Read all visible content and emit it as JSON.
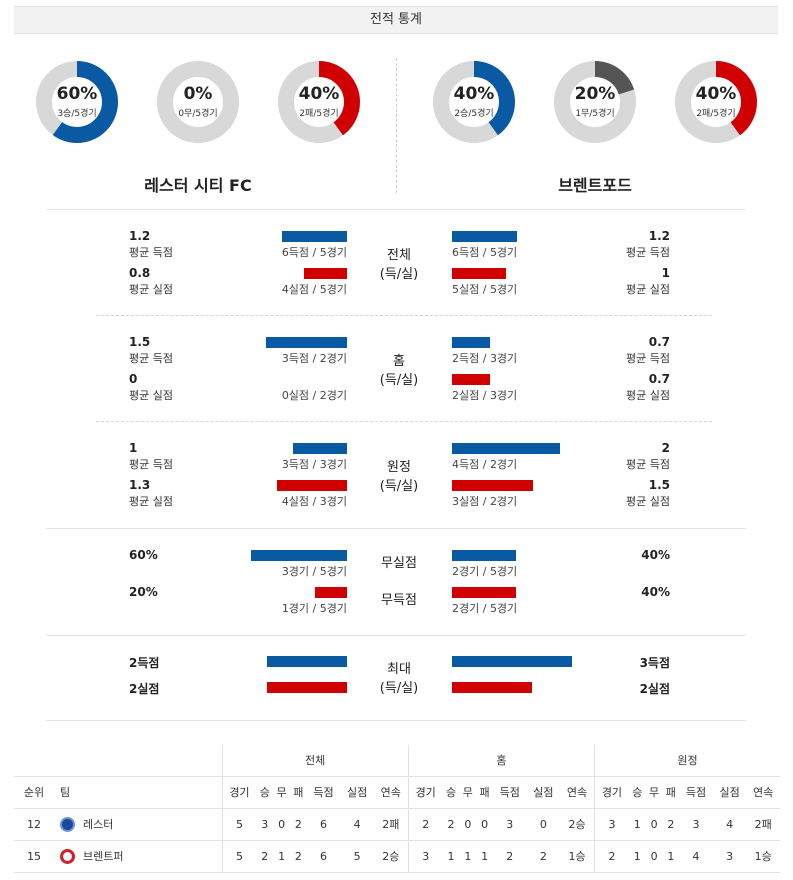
{
  "header": {
    "title": "전적 통계"
  },
  "donuts": {
    "home": [
      {
        "pct": "60%",
        "sub": "3승/5경기",
        "value": 0.6,
        "color": "#0a5aa3"
      },
      {
        "pct": "0%",
        "sub": "0무/5경기",
        "value": 0.0,
        "color": "#555555"
      },
      {
        "pct": "40%",
        "sub": "2패/5경기",
        "value": 0.4,
        "color": "#d00000"
      }
    ],
    "away": [
      {
        "pct": "40%",
        "sub": "2승/5경기",
        "value": 0.4,
        "color": "#0a5aa3"
      },
      {
        "pct": "20%",
        "sub": "1무/5경기",
        "value": 0.2,
        "color": "#555555"
      },
      {
        "pct": "40%",
        "sub": "2패/5경기",
        "value": 0.4,
        "color": "#d00000"
      }
    ]
  },
  "teams": {
    "home": "레스터 시티 FC",
    "away": "브렌트포드"
  },
  "colors": {
    "blue": "#0a5aa3",
    "red": "#d00000",
    "track": "#d8d8d8"
  },
  "sections": {
    "overall": {
      "center": [
        "전체",
        "(득/실)"
      ],
      "home": {
        "scored": {
          "value": "1.2",
          "label": "평균 득점",
          "cap": "6득점 / 5경기",
          "bar": 1.2
        },
        "conceded": {
          "value": "0.8",
          "label": "평균 실점",
          "cap": "4실점 / 5경기",
          "bar": 0.8
        }
      },
      "away": {
        "scored": {
          "value": "1.2",
          "label": "평균 득점",
          "cap": "6득점 / 5경기",
          "bar": 1.2
        },
        "conceded": {
          "value": "1",
          "label": "평균 실점",
          "cap": "5실점 / 5경기",
          "bar": 1.0
        }
      }
    },
    "home": {
      "center": [
        "홈",
        "(득/실)"
      ],
      "home": {
        "scored": {
          "value": "1.5",
          "label": "평균 득점",
          "cap": "3득점 / 2경기",
          "bar": 1.5
        },
        "conceded": {
          "value": "0",
          "label": "평균 실점",
          "cap": "0실점 / 2경기",
          "bar": 0
        }
      },
      "away": {
        "scored": {
          "value": "0.7",
          "label": "평균 득점",
          "cap": "2득점 / 3경기",
          "bar": 0.7
        },
        "conceded": {
          "value": "0.7",
          "label": "평균 실점",
          "cap": "2실점 / 3경기",
          "bar": 0.7
        }
      }
    },
    "away": {
      "center": [
        "원정",
        "(득/실)"
      ],
      "home": {
        "scored": {
          "value": "1",
          "label": "평균 득점",
          "cap": "3득점 / 3경기",
          "bar": 1.0
        },
        "conceded": {
          "value": "1.3",
          "label": "평균 실점",
          "cap": "4실점 / 3경기",
          "bar": 1.3
        }
      },
      "away": {
        "scored": {
          "value": "2",
          "label": "평균 득점",
          "cap": "4득점 / 2경기",
          "bar": 2.0
        },
        "conceded": {
          "value": "1.5",
          "label": "평균 실점",
          "cap": "3실점 / 2경기",
          "bar": 1.5
        }
      }
    }
  },
  "cleansheet": {
    "clean": {
      "center": "무실점",
      "home_value": "60%",
      "home_cap": "3경기 / 5경기",
      "home_bar": 0.6,
      "away_value": "40%",
      "away_cap": "2경기 / 5경기",
      "away_bar": 0.4
    },
    "noscore": {
      "center": "무득점",
      "home_value": "20%",
      "home_cap": "1경기 / 5경기",
      "home_bar": 0.2,
      "away_value": "40%",
      "away_cap": "2경기 / 5경기",
      "away_bar": 0.4
    }
  },
  "max": {
    "center": [
      "최대",
      "(득/실)"
    ],
    "home": {
      "scored": "2득점",
      "scored_bar": 2,
      "conceded": "2실점",
      "conceded_bar": 2
    },
    "away": {
      "scored": "3득점",
      "scored_bar": 3,
      "conceded": "2실점",
      "conceded_bar": 2
    }
  },
  "standings": {
    "groups": [
      "전체",
      "홈",
      "원정"
    ],
    "headers": [
      "순위",
      "팀",
      "경기",
      "승",
      "무",
      "패",
      "득점",
      "실점",
      "연속",
      "경기",
      "승",
      "무",
      "패",
      "득점",
      "실점",
      "연속",
      "경기",
      "승",
      "무",
      "패",
      "득점",
      "실점",
      "연속"
    ],
    "rows": [
      {
        "rank": "12",
        "team": "레스터",
        "crest": "lei",
        "cells": [
          "5",
          "3",
          "0",
          "2",
          "6",
          "4",
          "2패",
          "2",
          "2",
          "0",
          "0",
          "3",
          "0",
          "2승",
          "3",
          "1",
          "0",
          "2",
          "3",
          "4",
          "2패"
        ]
      },
      {
        "rank": "15",
        "team": "브렌트퍼",
        "crest": "bre",
        "cells": [
          "5",
          "2",
          "1",
          "2",
          "6",
          "5",
          "2승",
          "3",
          "1",
          "1",
          "1",
          "2",
          "2",
          "1승",
          "2",
          "1",
          "0",
          "1",
          "4",
          "3",
          "1승"
        ]
      }
    ]
  }
}
